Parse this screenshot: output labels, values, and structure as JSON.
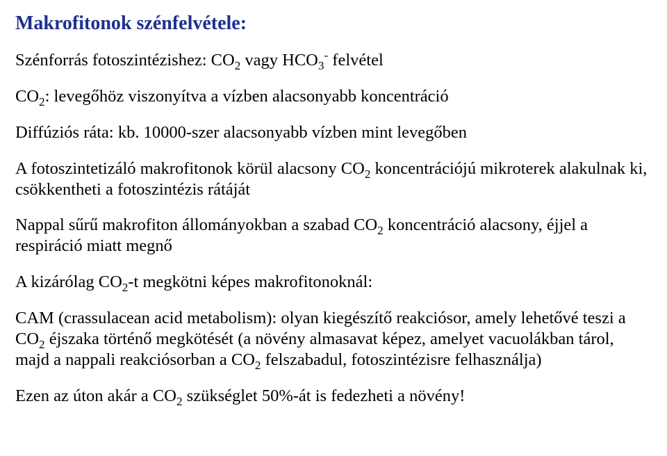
{
  "title": "Makrofitonok szénfelvétele:",
  "l1a": "Szénforrás fotoszintézishez: CO",
  "l1b": " vagy HCO",
  "l1c": " felvétel",
  "l2a": "CO",
  "l2b": ": levegőhöz viszonyítva a vízben alacsonyabb koncentráció",
  "l3": "Diffúziós ráta: kb. 10000-szer alacsonyabb vízben mint levegőben",
  "l4a": "A fotoszintetizáló makrofitonok körül alacsony CO",
  "l4b": " koncentrációjú mikroterek alakulnak ki, csökkentheti a fotoszintézis rátáját",
  "l5a": "Nappal sűrű makrofiton állományokban a szabad CO",
  "l5b": " koncentráció alacsony, éjjel a respiráció miatt megnő",
  "l6a": "A kizárólag CO",
  "l6b": "-t megkötni képes makrofitonoknál:",
  "l7a": "CAM (crassulacean acid metabolism): olyan kiegészítő reakciósor, amely lehetővé teszi a CO",
  "l7b": " éjszaka történő megkötését (a növény almasavat képez, amelyet vacuolákban tárol, majd a nappali reakciósorban a CO",
  "l7c": " felszabadul, fotoszintézisre felhasználja)",
  "l8a": "Ezen az úton akár a CO",
  "l8b": "szükséglet 50%-át is fedezheti a növény!",
  "d2": "2",
  "d3": "3",
  "minus": "-",
  "space": " "
}
